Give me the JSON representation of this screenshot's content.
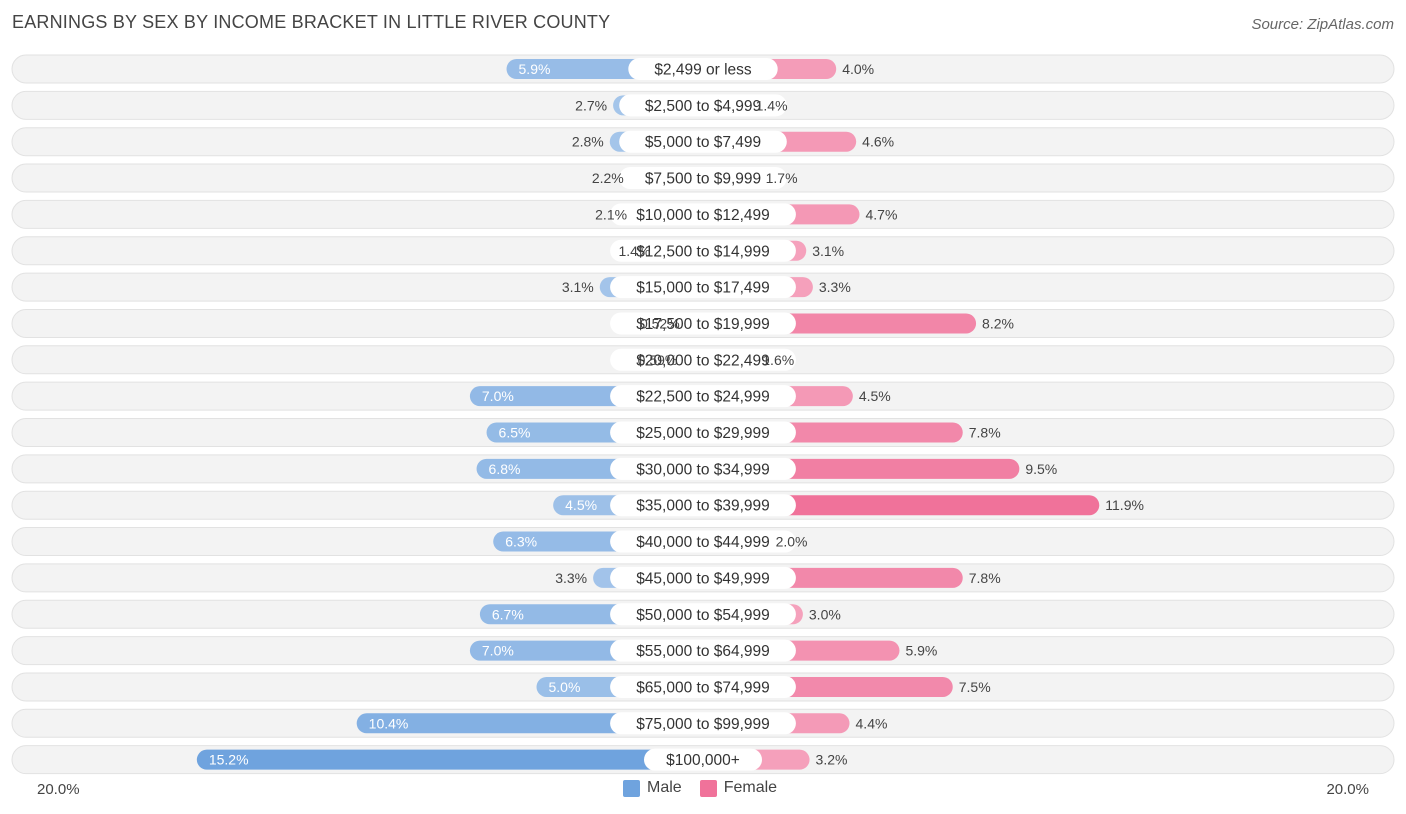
{
  "title": "EARNINGS BY SEX BY INCOME BRACKET IN LITTLE RIVER COUNTY",
  "source": "Source: ZipAtlas.com",
  "axis": {
    "left_label": "20.0%",
    "right_label": "20.0%"
  },
  "legend": {
    "male_label": "Male",
    "female_label": "Female"
  },
  "colors": {
    "male": "#6fa3de",
    "female": "#f0729a",
    "row_bg": "#f2f2f2"
  },
  "chart_data": {
    "type": "bar",
    "orientation": "horizontal-diverging",
    "title": "EARNINGS BY SEX BY INCOME BRACKET IN LITTLE RIVER COUNTY",
    "xlim": [
      -20,
      20
    ],
    "categories": [
      "$2,499 or less",
      "$2,500 to $4,999",
      "$5,000 to $7,499",
      "$7,500 to $9,999",
      "$10,000 to $12,499",
      "$12,500 to $14,999",
      "$15,000 to $17,499",
      "$17,500 to $19,999",
      "$20,000 to $22,499",
      "$22,500 to $24,999",
      "$25,000 to $29,999",
      "$30,000 to $34,999",
      "$35,000 to $39,999",
      "$40,000 to $44,999",
      "$45,000 to $49,999",
      "$50,000 to $54,999",
      "$55,000 to $64,999",
      "$65,000 to $74,999",
      "$75,000 to $99,999",
      "$100,000+"
    ],
    "series": [
      {
        "name": "Male",
        "values": [
          5.9,
          2.7,
          2.8,
          2.2,
          2.1,
          1.4,
          3.1,
          0.52,
          0.59,
          7.0,
          6.5,
          6.8,
          4.5,
          6.3,
          3.3,
          6.7,
          7.0,
          5.0,
          10.4,
          15.2
        ],
        "labels": [
          "5.9%",
          "2.7%",
          "2.8%",
          "2.2%",
          "2.1%",
          "1.4%",
          "3.1%",
          "0.52%",
          "0.59%",
          "7.0%",
          "6.5%",
          "6.8%",
          "4.5%",
          "6.3%",
          "3.3%",
          "6.7%",
          "7.0%",
          "5.0%",
          "10.4%",
          "15.2%"
        ]
      },
      {
        "name": "Female",
        "values": [
          4.0,
          1.4,
          4.6,
          1.7,
          4.7,
          3.1,
          3.3,
          8.2,
          1.6,
          4.5,
          7.8,
          9.5,
          11.9,
          2.0,
          7.8,
          3.0,
          5.9,
          7.5,
          4.4,
          3.2
        ],
        "labels": [
          "4.0%",
          "1.4%",
          "4.6%",
          "1.7%",
          "4.7%",
          "3.1%",
          "3.3%",
          "8.2%",
          "1.6%",
          "4.5%",
          "7.8%",
          "9.5%",
          "11.9%",
          "2.0%",
          "7.8%",
          "3.0%",
          "5.9%",
          "7.5%",
          "4.4%",
          "3.2%"
        ]
      }
    ]
  }
}
